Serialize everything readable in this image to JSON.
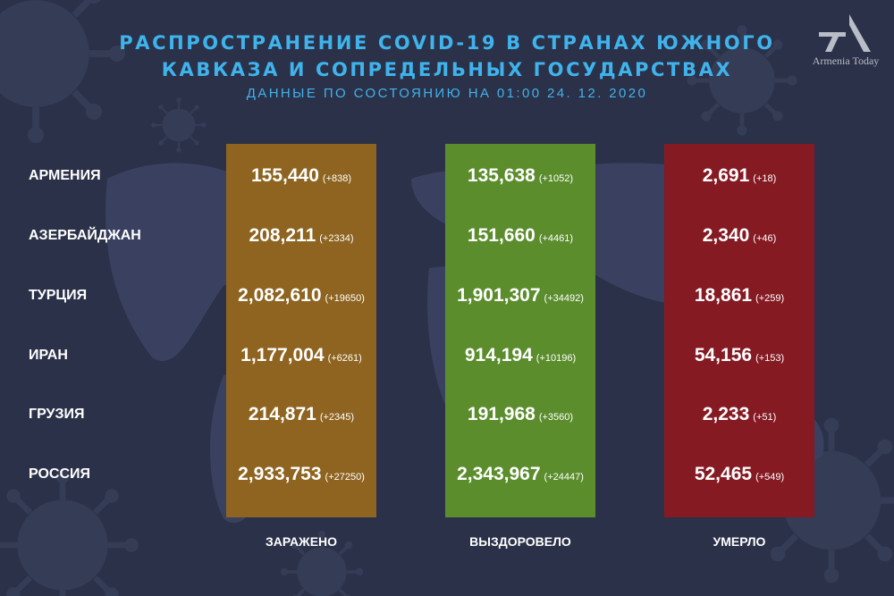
{
  "title_line1": "РАСПРОСТРАНЕНИЕ COVID-19 В СТРАНАХ ЮЖНОГО",
  "title_line2": "КАВКАЗА И СОПРЕДЕЛЬНЫХ ГОСУДАРСТВАХ",
  "subtitle": "ДАННЫЕ ПО СОСТОЯНИЮ НА 01:00  24. 12. 2020",
  "logo": {
    "text": "Armenia Today"
  },
  "colors": {
    "background": "#2b3148",
    "title": "#3fb3ec",
    "infected": "#8e6420",
    "recovered": "#5b8d2d",
    "deaths": "#851a23"
  },
  "chart_data": {
    "type": "table",
    "columns": [
      "ЗАРАЖЕНО",
      "ВЫЗДОРОВЕЛО",
      "УМЕРЛО"
    ],
    "rows": [
      {
        "country": "АРМЕНИЯ",
        "infected": "155,440",
        "infected_delta": "(+838)",
        "recovered": "135,638",
        "recovered_delta": "(+1052)",
        "deaths": "2,691",
        "deaths_delta": "(+18)"
      },
      {
        "country": "АЗЕРБАЙДЖАН",
        "infected": "208,211",
        "infected_delta": "(+2334)",
        "recovered": "151,660",
        "recovered_delta": "(+4461)",
        "deaths": "2,340",
        "deaths_delta": "(+46)"
      },
      {
        "country": "ТУРЦИЯ",
        "infected": "2,082,610",
        "infected_delta": "(+19650)",
        "recovered": "1,901,307",
        "recovered_delta": "(+34492)",
        "deaths": "18,861",
        "deaths_delta": "(+259)"
      },
      {
        "country": "ИРАН",
        "infected": "1,177,004",
        "infected_delta": "(+6261)",
        "recovered": "914,194",
        "recovered_delta": "(+10196)",
        "deaths": "54,156",
        "deaths_delta": "(+153)"
      },
      {
        "country": "ГРУЗИЯ",
        "infected": "214,871",
        "infected_delta": "(+2345)",
        "recovered": "191,968",
        "recovered_delta": "(+3560)",
        "deaths": "2,233",
        "deaths_delta": "(+51)"
      },
      {
        "country": "РОССИЯ",
        "infected": "2,933,753",
        "infected_delta": "(+27250)",
        "recovered": "2,343,967",
        "recovered_delta": "(+24447)",
        "deaths": "52,465",
        "deaths_delta": "(+549)"
      }
    ]
  }
}
